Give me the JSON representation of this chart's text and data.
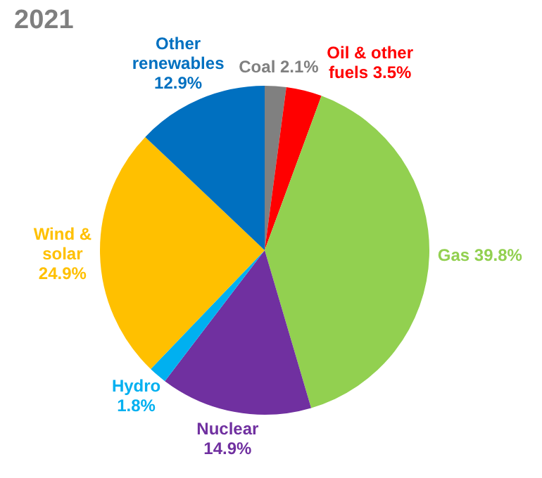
{
  "chart_data": {
    "type": "pie",
    "title": "2021",
    "categories": [
      "Coal",
      "Oil & other fuels",
      "Gas",
      "Nuclear",
      "Hydro",
      "Wind & solar",
      "Other renewables"
    ],
    "values": [
      2.1,
      3.5,
      39.8,
      14.9,
      1.8,
      24.9,
      12.9
    ],
    "value_labels": [
      "2.1%",
      "3.5%",
      "39.8%",
      "14.9%",
      "1.8%",
      "24.9%",
      "12.9%"
    ],
    "colors": [
      "#808080",
      "#ff0000",
      "#92d050",
      "#7030a0",
      "#00b0f0",
      "#ffc000",
      "#0070c0"
    ],
    "legend": false
  }
}
